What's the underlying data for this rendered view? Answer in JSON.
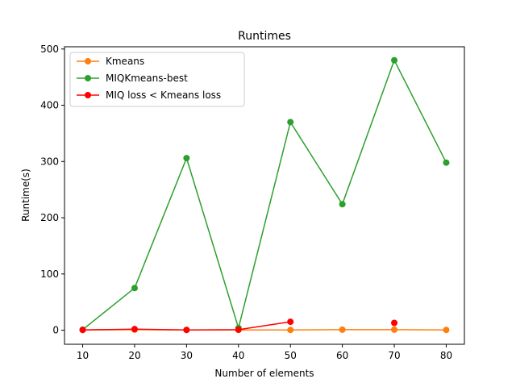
{
  "chart_data": {
    "type": "line",
    "title": "Runtimes",
    "xlabel": "Number of elements",
    "ylabel": "Runtime(s)",
    "xlim": [
      6.5,
      83.5
    ],
    "ylim": [
      -25,
      504
    ],
    "xticks": [
      10,
      20,
      30,
      40,
      50,
      60,
      70,
      80
    ],
    "yticks": [
      0,
      100,
      200,
      300,
      400,
      500
    ],
    "legend_position": "top-left",
    "grid": false,
    "series": [
      {
        "name": "Kmeans",
        "color": "#ff7f0e",
        "x": [
          10,
          20,
          30,
          40,
          50,
          60,
          70,
          80
        ],
        "values": [
          0.5,
          1.0,
          0.5,
          0.5,
          0.5,
          1.0,
          1.0,
          0.5
        ]
      },
      {
        "name": "MIQKmeans-best",
        "color": "#2ca02c",
        "x": [
          10,
          20,
          30,
          40,
          50,
          60,
          70,
          80
        ],
        "values": [
          1,
          75,
          306,
          4,
          370,
          224,
          480,
          298
        ]
      },
      {
        "name": "MIQ loss < Kmeans loss",
        "color": "#ff0000",
        "x": [
          10,
          20,
          30,
          40,
          50,
          60,
          70,
          80
        ],
        "values": [
          0.5,
          2,
          0.5,
          1,
          15,
          null,
          13,
          null
        ]
      }
    ]
  }
}
